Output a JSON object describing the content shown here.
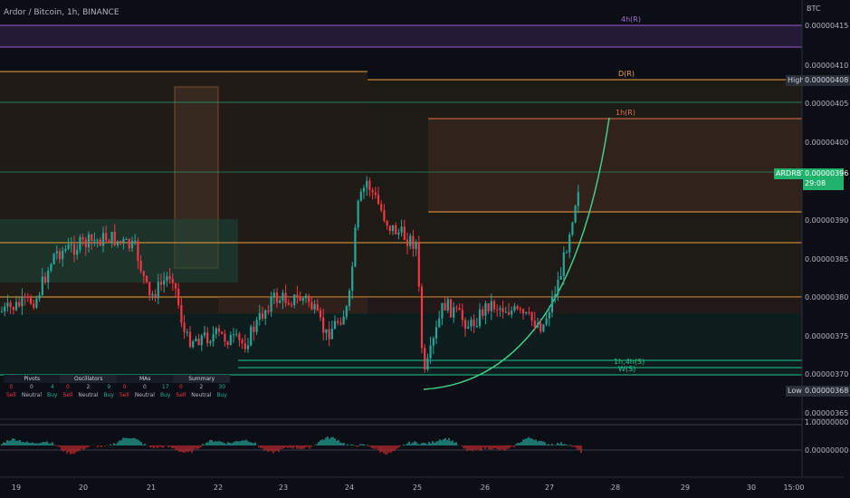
{
  "header": {
    "title": "Ardor / Bitcoin, 1h, BINANCE",
    "currency": "BTC"
  },
  "colors": {
    "up": "#26a69a",
    "down": "#f23645",
    "bg": "#0c0e15",
    "orange": "#f0a03c",
    "purple": "#9c5cd4",
    "green": "#22c48c"
  },
  "price_axis": {
    "ticks": [
      "0.00000415",
      "0.00000410",
      "0.00000405",
      "0.00000400",
      "0.00000390",
      "0.00000385",
      "0.00000380",
      "0.00000375",
      "0.00000370",
      "0.00000365"
    ]
  },
  "osc_axis": {
    "ticks": [
      "1.00000000",
      "0.00000000"
    ]
  },
  "time_axis": {
    "ticks": [
      "19",
      "20",
      "21",
      "22",
      "23",
      "24",
      "25",
      "26",
      "27",
      "28",
      "29",
      "30",
      "15:00"
    ]
  },
  "tags": {
    "symbol": "ARDRBTC",
    "price": "0.00000396",
    "countdown": "29:08",
    "high_label": "High",
    "high_value": "0.00000408",
    "low_label": "Low",
    "low_value": "0.00000368"
  },
  "levels": [
    {
      "label": "4h(R)"
    },
    {
      "label": "D(R)"
    },
    {
      "label": "1h(R)"
    },
    {
      "label": "1h,4h(S)"
    },
    {
      "label": "W(S)"
    }
  ],
  "table": {
    "headers": [
      "Pivots",
      "Oscillators",
      "MAs",
      "Summary"
    ],
    "counts": [
      [
        "0",
        "0",
        "4"
      ],
      [
        "0",
        "2",
        "9"
      ],
      [
        "0",
        "0",
        "17"
      ],
      [
        "0",
        "2",
        "30"
      ]
    ],
    "signals": [
      "Sell",
      "Neutral",
      "Buy"
    ]
  },
  "chart_data": {
    "type": "candlestick",
    "title": "Ardor / Bitcoin, 1h, BINANCE",
    "ylim": [
      3.645e-06,
      4.175e-06
    ],
    "x_categories": [
      "19",
      "20",
      "21",
      "22",
      "23",
      "24",
      "25",
      "26",
      "27",
      "28",
      "29",
      "30",
      "15:00"
    ],
    "last_close": 3.96e-06,
    "high": 4.08e-06,
    "low": 3.68e-06
  }
}
